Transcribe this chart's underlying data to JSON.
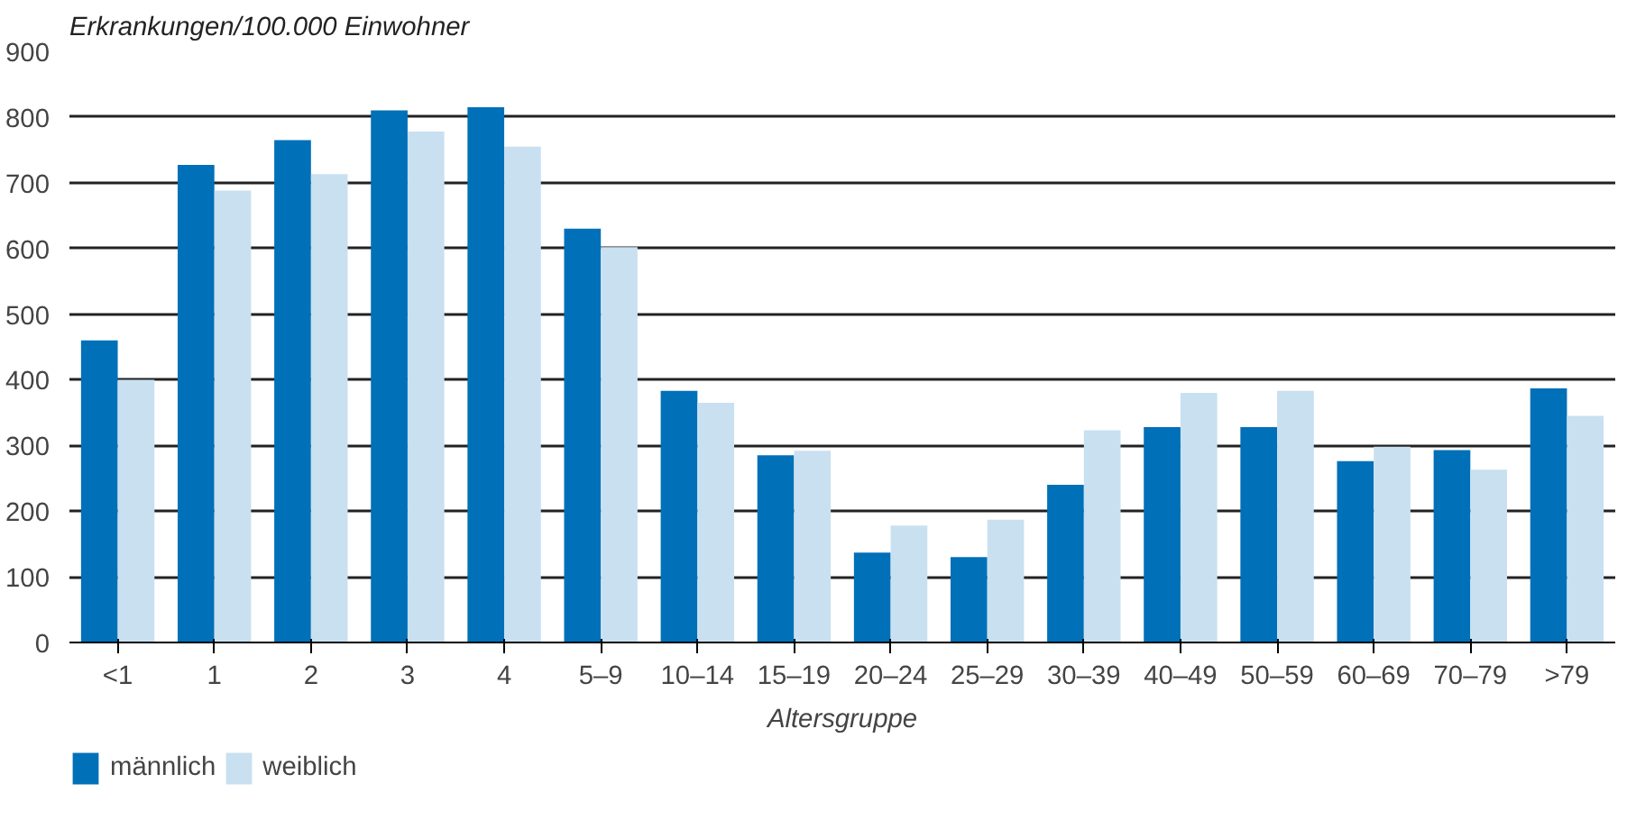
{
  "chart_data": {
    "type": "bar",
    "title": "Erkrankungen/100.000 Einwohner",
    "xlabel": "Altersgruppe",
    "categories": [
      "<1",
      "1",
      "2",
      "3",
      "4",
      "5–9",
      "10–14",
      "15–19",
      "20–24",
      "25–29",
      "30–39",
      "40–49",
      "50–59",
      "60–69",
      "70–79",
      ">79"
    ],
    "series": [
      {
        "name": "männlich",
        "color": "#0070b8",
        "values": [
          460,
          727,
          765,
          810,
          815,
          630,
          383,
          285,
          137,
          130,
          240,
          328,
          328,
          276,
          293,
          387
        ]
      },
      {
        "name": "weiblich",
        "color": "#c9e0f0",
        "values": [
          400,
          688,
          713,
          778,
          755,
          602,
          365,
          292,
          178,
          187,
          323,
          380,
          383,
          298,
          263,
          345
        ]
      }
    ],
    "ylim": [
      0,
      900
    ],
    "yticks": [
      0,
      100,
      200,
      300,
      400,
      500,
      600,
      700,
      800,
      900
    ],
    "grid": "y",
    "legend": "bottom left"
  }
}
